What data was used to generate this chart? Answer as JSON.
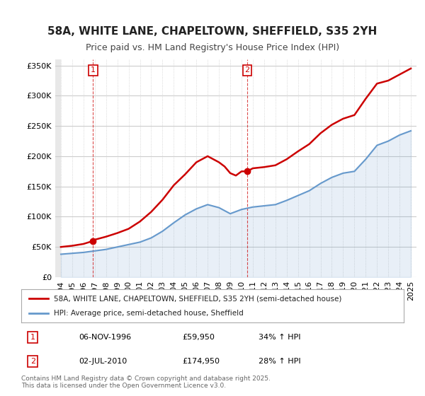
{
  "title": "58A, WHITE LANE, CHAPELTOWN, SHEFFIELD, S35 2YH",
  "subtitle": "Price paid vs. HM Land Registry's House Price Index (HPI)",
  "legend_line1": "58A, WHITE LANE, CHAPELTOWN, SHEFFIELD, S35 2YH (semi-detached house)",
  "legend_line2": "HPI: Average price, semi-detached house, Sheffield",
  "footer": "Contains HM Land Registry data © Crown copyright and database right 2025.\nThis data is licensed under the Open Government Licence v3.0.",
  "point1_label": "1",
  "point1_date": "06-NOV-1996",
  "point1_price": "£59,950",
  "point1_hpi": "34% ↑ HPI",
  "point1_year": 1996.85,
  "point1_value": 59950,
  "point2_label": "2",
  "point2_date": "02-JUL-2010",
  "point2_price": "£174,950",
  "point2_hpi": "28% ↑ HPI",
  "point2_year": 2010.5,
  "point2_value": 174950,
  "ylim": [
    0,
    360000
  ],
  "xlim_left": 1993.5,
  "xlim_right": 2025.5,
  "yticks": [
    0,
    50000,
    100000,
    150000,
    200000,
    250000,
    300000,
    350000
  ],
  "ytick_labels": [
    "£0",
    "£50K",
    "£100K",
    "£150K",
    "£200K",
    "£250K",
    "£300K",
    "£350K"
  ],
  "xticks": [
    1994,
    1995,
    1996,
    1997,
    1998,
    1999,
    2000,
    2001,
    2002,
    2003,
    2004,
    2005,
    2006,
    2007,
    2008,
    2009,
    2010,
    2011,
    2012,
    2013,
    2014,
    2015,
    2016,
    2017,
    2018,
    2019,
    2020,
    2021,
    2022,
    2023,
    2024,
    2025
  ],
  "red_color": "#cc0000",
  "blue_color": "#6699cc",
  "hatch_color": "#dddddd",
  "bg_color": "#ffffff",
  "grid_color": "#cccccc",
  "title_fontsize": 11,
  "subtitle_fontsize": 9,
  "axis_fontsize": 8,
  "hpi_data_years": [
    1994,
    1995,
    1996,
    1997,
    1998,
    1999,
    2000,
    2001,
    2002,
    2003,
    2004,
    2005,
    2006,
    2007,
    2008,
    2009,
    2010,
    2011,
    2012,
    2013,
    2014,
    2015,
    2016,
    2017,
    2018,
    2019,
    2020,
    2021,
    2022,
    2023,
    2024,
    2025
  ],
  "hpi_values": [
    38000,
    39500,
    41000,
    43500,
    46000,
    50000,
    54000,
    58000,
    65000,
    76000,
    90000,
    103000,
    113000,
    120000,
    115000,
    105000,
    112000,
    116000,
    118000,
    120000,
    127000,
    135000,
    143000,
    155000,
    165000,
    172000,
    175000,
    195000,
    218000,
    225000,
    235000,
    242000
  ],
  "red_data_years": [
    1994,
    1995,
    1996,
    1996.85,
    1997,
    1998,
    1999,
    2000,
    2001,
    2002,
    2003,
    2004,
    2005,
    2006,
    2007,
    2008,
    2008.5,
    2009,
    2009.5,
    2010,
    2010.5,
    2011,
    2012,
    2013,
    2014,
    2015,
    2016,
    2017,
    2018,
    2019,
    2020,
    2021,
    2022,
    2023,
    2024,
    2025
  ],
  "red_values": [
    50000,
    52000,
    55000,
    59950,
    62000,
    67000,
    73000,
    80000,
    92000,
    108000,
    128000,
    152000,
    170000,
    190000,
    200000,
    190000,
    183000,
    172000,
    168000,
    174950,
    174950,
    180000,
    182000,
    185000,
    195000,
    208000,
    220000,
    238000,
    252000,
    262000,
    268000,
    295000,
    320000,
    325000,
    335000,
    345000
  ]
}
